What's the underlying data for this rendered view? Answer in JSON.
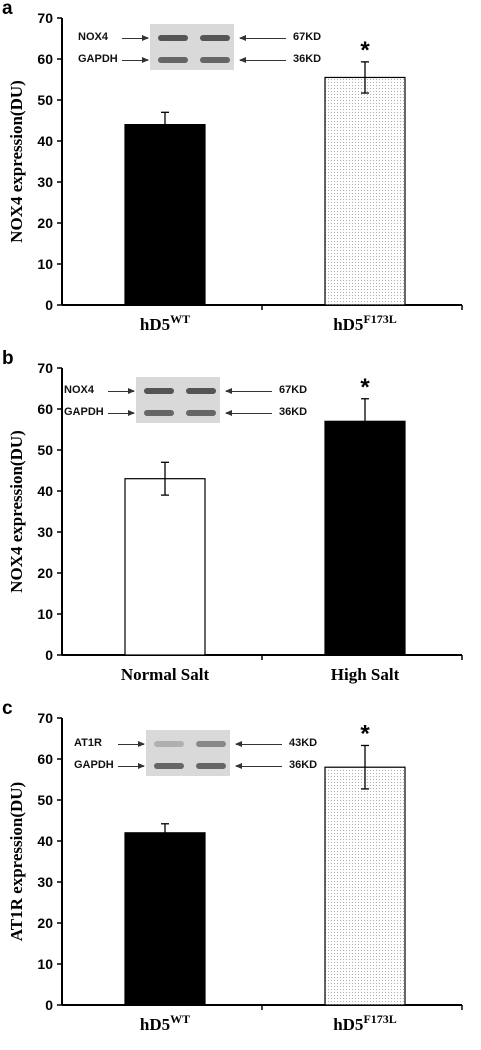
{
  "figures": [
    {
      "letter": "a",
      "ylabel": "NOX4 expression(DU)",
      "blot": {
        "rows": [
          {
            "name": "NOX4",
            "kd": "67KD"
          },
          {
            "name": "GAPDH",
            "kd": "36KD"
          }
        ]
      },
      "chart_data": {
        "type": "bar",
        "categories": [
          {
            "base": "hD5",
            "sup": "WT"
          },
          {
            "base": "hD5",
            "sup": "F173L"
          }
        ],
        "values": [
          44,
          55.5
        ],
        "errors": [
          3,
          3.8
        ],
        "significance": [
          "",
          "*"
        ],
        "fills": [
          "#000000",
          "dotted"
        ],
        "ylim": [
          0,
          70
        ],
        "yticks": [
          "0",
          "10",
          "20",
          "30",
          "40",
          "50",
          "60",
          "70"
        ],
        "ylabel": "NOX4 expression(DU)"
      }
    },
    {
      "letter": "b",
      "ylabel": "NOX4 expression(DU)",
      "blot": {
        "rows": [
          {
            "name": "NOX4",
            "kd": "67KD"
          },
          {
            "name": "GAPDH",
            "kd": "36KD"
          }
        ]
      },
      "chart_data": {
        "type": "bar",
        "categories": [
          {
            "base": "Normal Salt",
            "sup": ""
          },
          {
            "base": "High Salt",
            "sup": ""
          }
        ],
        "values": [
          43,
          57
        ],
        "errors": [
          4,
          5.5
        ],
        "significance": [
          "",
          "*"
        ],
        "fills": [
          "#ffffff",
          "#000000"
        ],
        "ylim": [
          0,
          70
        ],
        "yticks": [
          "0",
          "10",
          "20",
          "30",
          "40",
          "50",
          "60",
          "70"
        ],
        "ylabel": "NOX4 expression(DU)"
      }
    },
    {
      "letter": "c",
      "ylabel": "AT1R expression(DU)",
      "blot": {
        "rows": [
          {
            "name": "AT1R",
            "kd": "43KD"
          },
          {
            "name": "GAPDH",
            "kd": "36KD"
          }
        ]
      },
      "chart_data": {
        "type": "bar",
        "categories": [
          {
            "base": "hD5",
            "sup": "WT"
          },
          {
            "base": "hD5",
            "sup": "F173L"
          }
        ],
        "values": [
          42,
          58
        ],
        "errors": [
          2.2,
          5.3
        ],
        "significance": [
          "",
          "*"
        ],
        "fills": [
          "#000000",
          "dotted"
        ],
        "ylim": [
          0,
          70
        ],
        "yticks": [
          "0",
          "10",
          "20",
          "30",
          "40",
          "50",
          "60",
          "70"
        ],
        "ylabel": "AT1R expression(DU)"
      }
    }
  ]
}
